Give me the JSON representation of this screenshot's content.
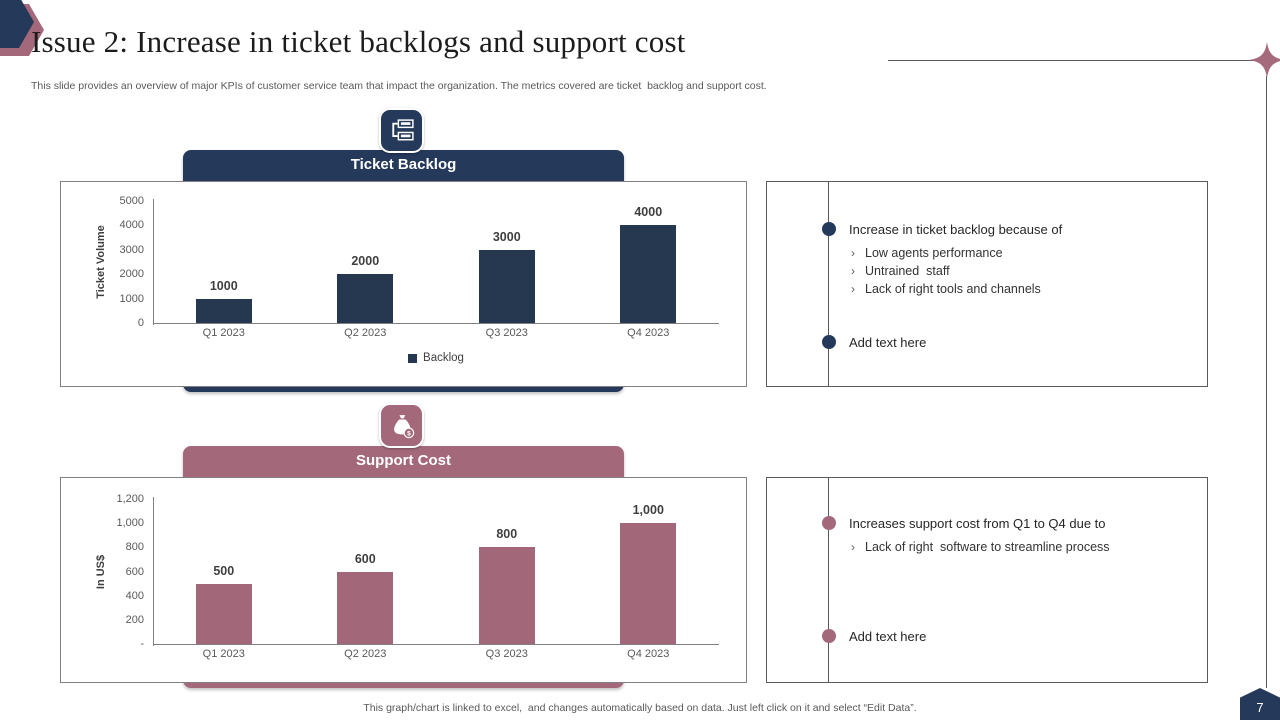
{
  "slide": {
    "title": "Issue 2: Increase in ticket backlogs and support cost",
    "subtitle": "This slide provides an overview of major KPIs of customer service team that impact the organization. The metrics covered are ticket  backlog and support cost.",
    "footer": "This graph/chart is linked to excel,  and changes automatically based on data. Just left click on it and select “Edit Data”.",
    "page_number": "7"
  },
  "colors": {
    "navy": "#25395B",
    "navy_bar": "#263850",
    "mauve": "#A3697B",
    "mauve_bar": "#A2687A",
    "sparkle": "#A56B7C",
    "line_gray": "#595959"
  },
  "sections": [
    {
      "header": "Ticket Backlog",
      "icon": "tickets-icon",
      "bullets": [
        {
          "text": "Increase in ticket backlog because of",
          "sub": [
            "Low agents performance",
            "Untrained  staff",
            "Lack of right tools and channels"
          ]
        },
        {
          "text": "Add text here",
          "sub": []
        }
      ]
    },
    {
      "header": "Support Cost",
      "icon": "money-bag-icon",
      "bullets": [
        {
          "text": "Increases support cost from Q1 to Q4 due to",
          "sub": [
            "Lack of right  software to streamline process"
          ]
        },
        {
          "text": "Add text here",
          "sub": []
        }
      ]
    }
  ],
  "chart_data": [
    {
      "type": "bar",
      "title": "Ticket Backlog",
      "categories": [
        "Q1 2023",
        "Q2 2023",
        "Q3 2023",
        "Q4 2023"
      ],
      "values": [
        1000,
        2000,
        3000,
        4000
      ],
      "data_labels": [
        "1000",
        "2000",
        "3000",
        "4000"
      ],
      "xlabel": "",
      "ylabel": "Ticket Volume",
      "ylim": [
        0,
        5000
      ],
      "yticks": [
        "0",
        "1000",
        "2000",
        "3000",
        "4000",
        "5000"
      ],
      "grid": false,
      "bar_color": "#263850",
      "legend": [
        "Backlog"
      ],
      "legend_position": "bottom"
    },
    {
      "type": "bar",
      "title": "Support Cost",
      "categories": [
        "Q1 2023",
        "Q2 2023",
        "Q3 2023",
        "Q4 2023"
      ],
      "values": [
        500,
        600,
        800,
        1000
      ],
      "data_labels": [
        "500",
        "600",
        "800",
        "1,000"
      ],
      "xlabel": "",
      "ylabel": "In US$",
      "ylim": [
        0,
        1200
      ],
      "yticks": [
        "-",
        "200",
        "400",
        "600",
        "800",
        "1,000",
        "1,200"
      ],
      "grid": false,
      "bar_color": "#A2687A",
      "legend": [],
      "legend_position": "none"
    }
  ]
}
